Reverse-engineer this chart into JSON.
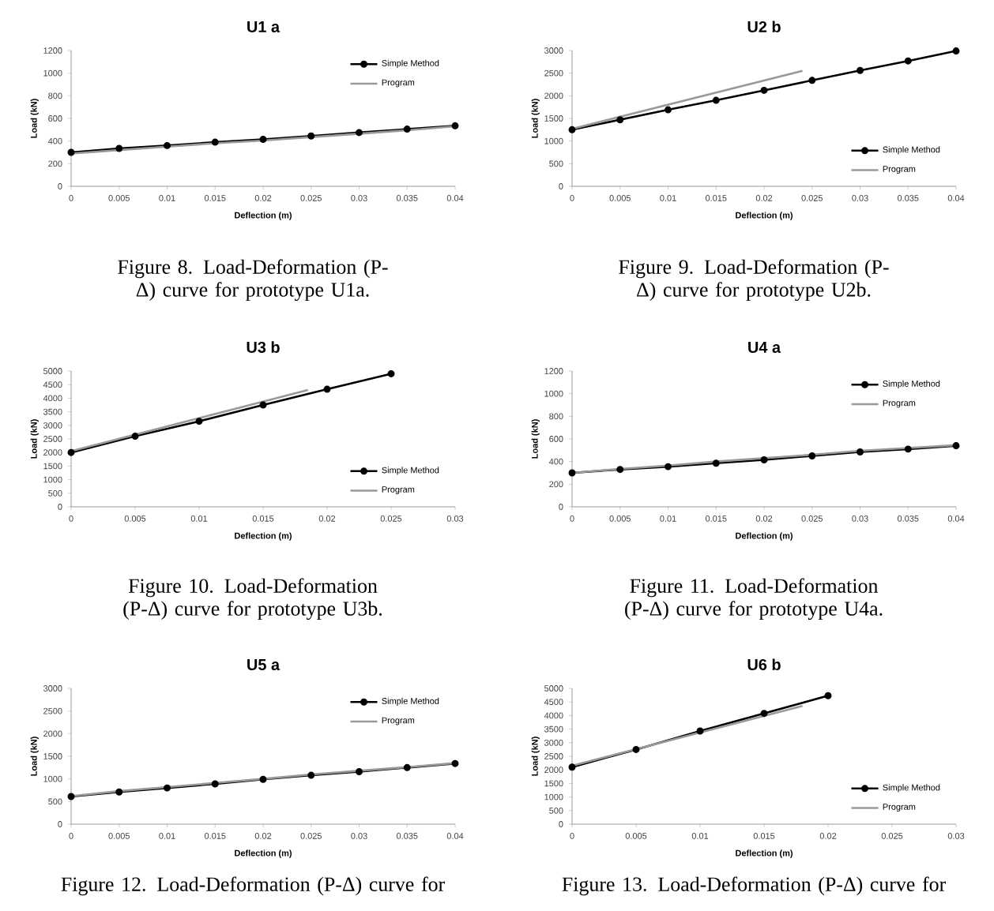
{
  "chart_data": [
    {
      "type": "line",
      "title": "U1 a",
      "xlabel": "Deflection (m)",
      "ylabel": "Load (kN)",
      "x": [
        0,
        0.005,
        0.01,
        0.015,
        0.02,
        0.025,
        0.03,
        0.035,
        0.04
      ],
      "xlim": [
        0,
        0.04
      ],
      "xticks": [
        0,
        0.005,
        0.01,
        0.015,
        0.02,
        0.025,
        0.03,
        0.035,
        0.04
      ],
      "ylim": [
        0,
        1200
      ],
      "yticks": [
        0,
        200,
        400,
        600,
        800,
        1000,
        1200
      ],
      "legend": "top right",
      "annotations": [
        "Figure 8. Load-Deformation (P-Δ) curve for prototype U1a."
      ],
      "series": [
        {
          "name": "Simple Method",
          "color": "#000000",
          "marker": "circle",
          "values": [
            300,
            335,
            360,
            390,
            415,
            445,
            475,
            505,
            535
          ]
        },
        {
          "name": "Program",
          "color": "#999999",
          "marker": "none",
          "values": [
            290,
            320,
            350,
            380,
            405,
            435,
            465,
            495,
            530
          ]
        }
      ]
    },
    {
      "type": "line",
      "title": "U2 b",
      "xlabel": "Deflection (m)",
      "ylabel": "Load (kN)",
      "x": [
        0,
        0.005,
        0.01,
        0.015,
        0.02,
        0.025,
        0.03,
        0.035,
        0.04
      ],
      "xlim": [
        0,
        0.04
      ],
      "xticks": [
        0,
        0.005,
        0.01,
        0.015,
        0.02,
        0.025,
        0.03,
        0.035,
        0.04
      ],
      "ylim": [
        0,
        3000
      ],
      "yticks": [
        0,
        500,
        1000,
        1500,
        2000,
        2500,
        3000
      ],
      "legend": "bottom right",
      "annotations": [
        "Figure 9. Load-Deformation (P-Δ) curve for prototype U2b."
      ],
      "series": [
        {
          "name": "Simple Method",
          "color": "#000000",
          "marker": "circle",
          "values": [
            1250,
            1470,
            1690,
            1900,
            2120,
            2340,
            2560,
            2770,
            2990
          ]
        },
        {
          "name": "Program",
          "color": "#999999",
          "marker": "none",
          "x": [
            0,
            0.024
          ],
          "values": [
            1270,
            2550
          ]
        }
      ]
    },
    {
      "type": "line",
      "title": "U3 b",
      "xlabel": "Deflection (m)",
      "ylabel": "Load (kN)",
      "x": [
        0,
        0.005,
        0.01,
        0.015,
        0.02,
        0.025
      ],
      "xlim": [
        0,
        0.03
      ],
      "xticks": [
        0,
        0.005,
        0.01,
        0.015,
        0.02,
        0.025,
        0.03
      ],
      "ylim": [
        0,
        5000
      ],
      "yticks": [
        0,
        500,
        1000,
        1500,
        2000,
        2500,
        3000,
        3500,
        4000,
        4500,
        5000
      ],
      "legend": "bottom right",
      "annotations": [
        "Figure 10. Load-Deformation (P-Δ) curve for prototype U3b."
      ],
      "series": [
        {
          "name": "Simple Method",
          "color": "#000000",
          "marker": "circle",
          "values": [
            2000,
            2600,
            3150,
            3750,
            4330,
            4900
          ]
        },
        {
          "name": "Program",
          "color": "#999999",
          "marker": "none",
          "x": [
            0,
            0.0185
          ],
          "values": [
            2050,
            4300
          ]
        }
      ]
    },
    {
      "type": "line",
      "title": "U4 a",
      "xlabel": "Deflection (m)",
      "ylabel": "Load (kN)",
      "x": [
        0,
        0.005,
        0.01,
        0.015,
        0.02,
        0.025,
        0.03,
        0.035,
        0.04
      ],
      "xlim": [
        0,
        0.04
      ],
      "xticks": [
        0,
        0.005,
        0.01,
        0.015,
        0.02,
        0.025,
        0.03,
        0.035,
        0.04
      ],
      "ylim": [
        0,
        1200
      ],
      "yticks": [
        0,
        200,
        400,
        600,
        800,
        1000,
        1200
      ],
      "legend": "top right",
      "annotations": [
        "Figure 11. Load-Deformation (P-Δ) curve for prototype U4a."
      ],
      "series": [
        {
          "name": "Simple Method",
          "color": "#000000",
          "marker": "circle",
          "values": [
            300,
            330,
            355,
            385,
            415,
            450,
            485,
            510,
            540
          ]
        },
        {
          "name": "Program",
          "color": "#999999",
          "marker": "none",
          "values": [
            300,
            335,
            365,
            400,
            430,
            460,
            495,
            520,
            545
          ]
        }
      ]
    },
    {
      "type": "line",
      "title": "U5 a",
      "xlabel": "Deflection (m)",
      "ylabel": "Load (kN)",
      "x": [
        0,
        0.005,
        0.01,
        0.015,
        0.02,
        0.025,
        0.03,
        0.035,
        0.04
      ],
      "xlim": [
        0,
        0.04
      ],
      "xticks": [
        0,
        0.005,
        0.01,
        0.015,
        0.02,
        0.025,
        0.03,
        0.035,
        0.04
      ],
      "ylim": [
        0,
        3000
      ],
      "yticks": [
        0,
        500,
        1000,
        1500,
        2000,
        2500,
        3000
      ],
      "legend": "top right",
      "annotations": [
        "Figure 12. Load-Deformation (P-Δ) curve for"
      ],
      "series": [
        {
          "name": "Simple Method",
          "color": "#000000",
          "marker": "circle",
          "values": [
            610,
            710,
            800,
            890,
            990,
            1080,
            1160,
            1250,
            1340
          ]
        },
        {
          "name": "Program",
          "color": "#999999",
          "marker": "none",
          "values": [
            620,
            730,
            820,
            910,
            1000,
            1100,
            1180,
            1260,
            1350
          ]
        }
      ]
    },
    {
      "type": "line",
      "title": "U6 b",
      "xlabel": "Deflection (m)",
      "ylabel": "Load (kN)",
      "x": [
        0,
        0.005,
        0.01,
        0.015,
        0.02
      ],
      "xlim": [
        0,
        0.03
      ],
      "xticks": [
        0,
        0.005,
        0.01,
        0.015,
        0.02,
        0.025,
        0.03
      ],
      "ylim": [
        0,
        5000
      ],
      "yticks": [
        0,
        500,
        1000,
        1500,
        2000,
        2500,
        3000,
        3500,
        4000,
        4500,
        5000
      ],
      "legend": "bottom right",
      "annotations": [
        "Figure 13. Load-Deformation (P-Δ) curve for"
      ],
      "series": [
        {
          "name": "Simple Method",
          "color": "#000000",
          "marker": "circle",
          "values": [
            2100,
            2750,
            3430,
            4080,
            4730
          ]
        },
        {
          "name": "Program",
          "color": "#999999",
          "marker": "none",
          "x": [
            0,
            0.018
          ],
          "values": [
            2150,
            4350
          ]
        }
      ]
    }
  ]
}
